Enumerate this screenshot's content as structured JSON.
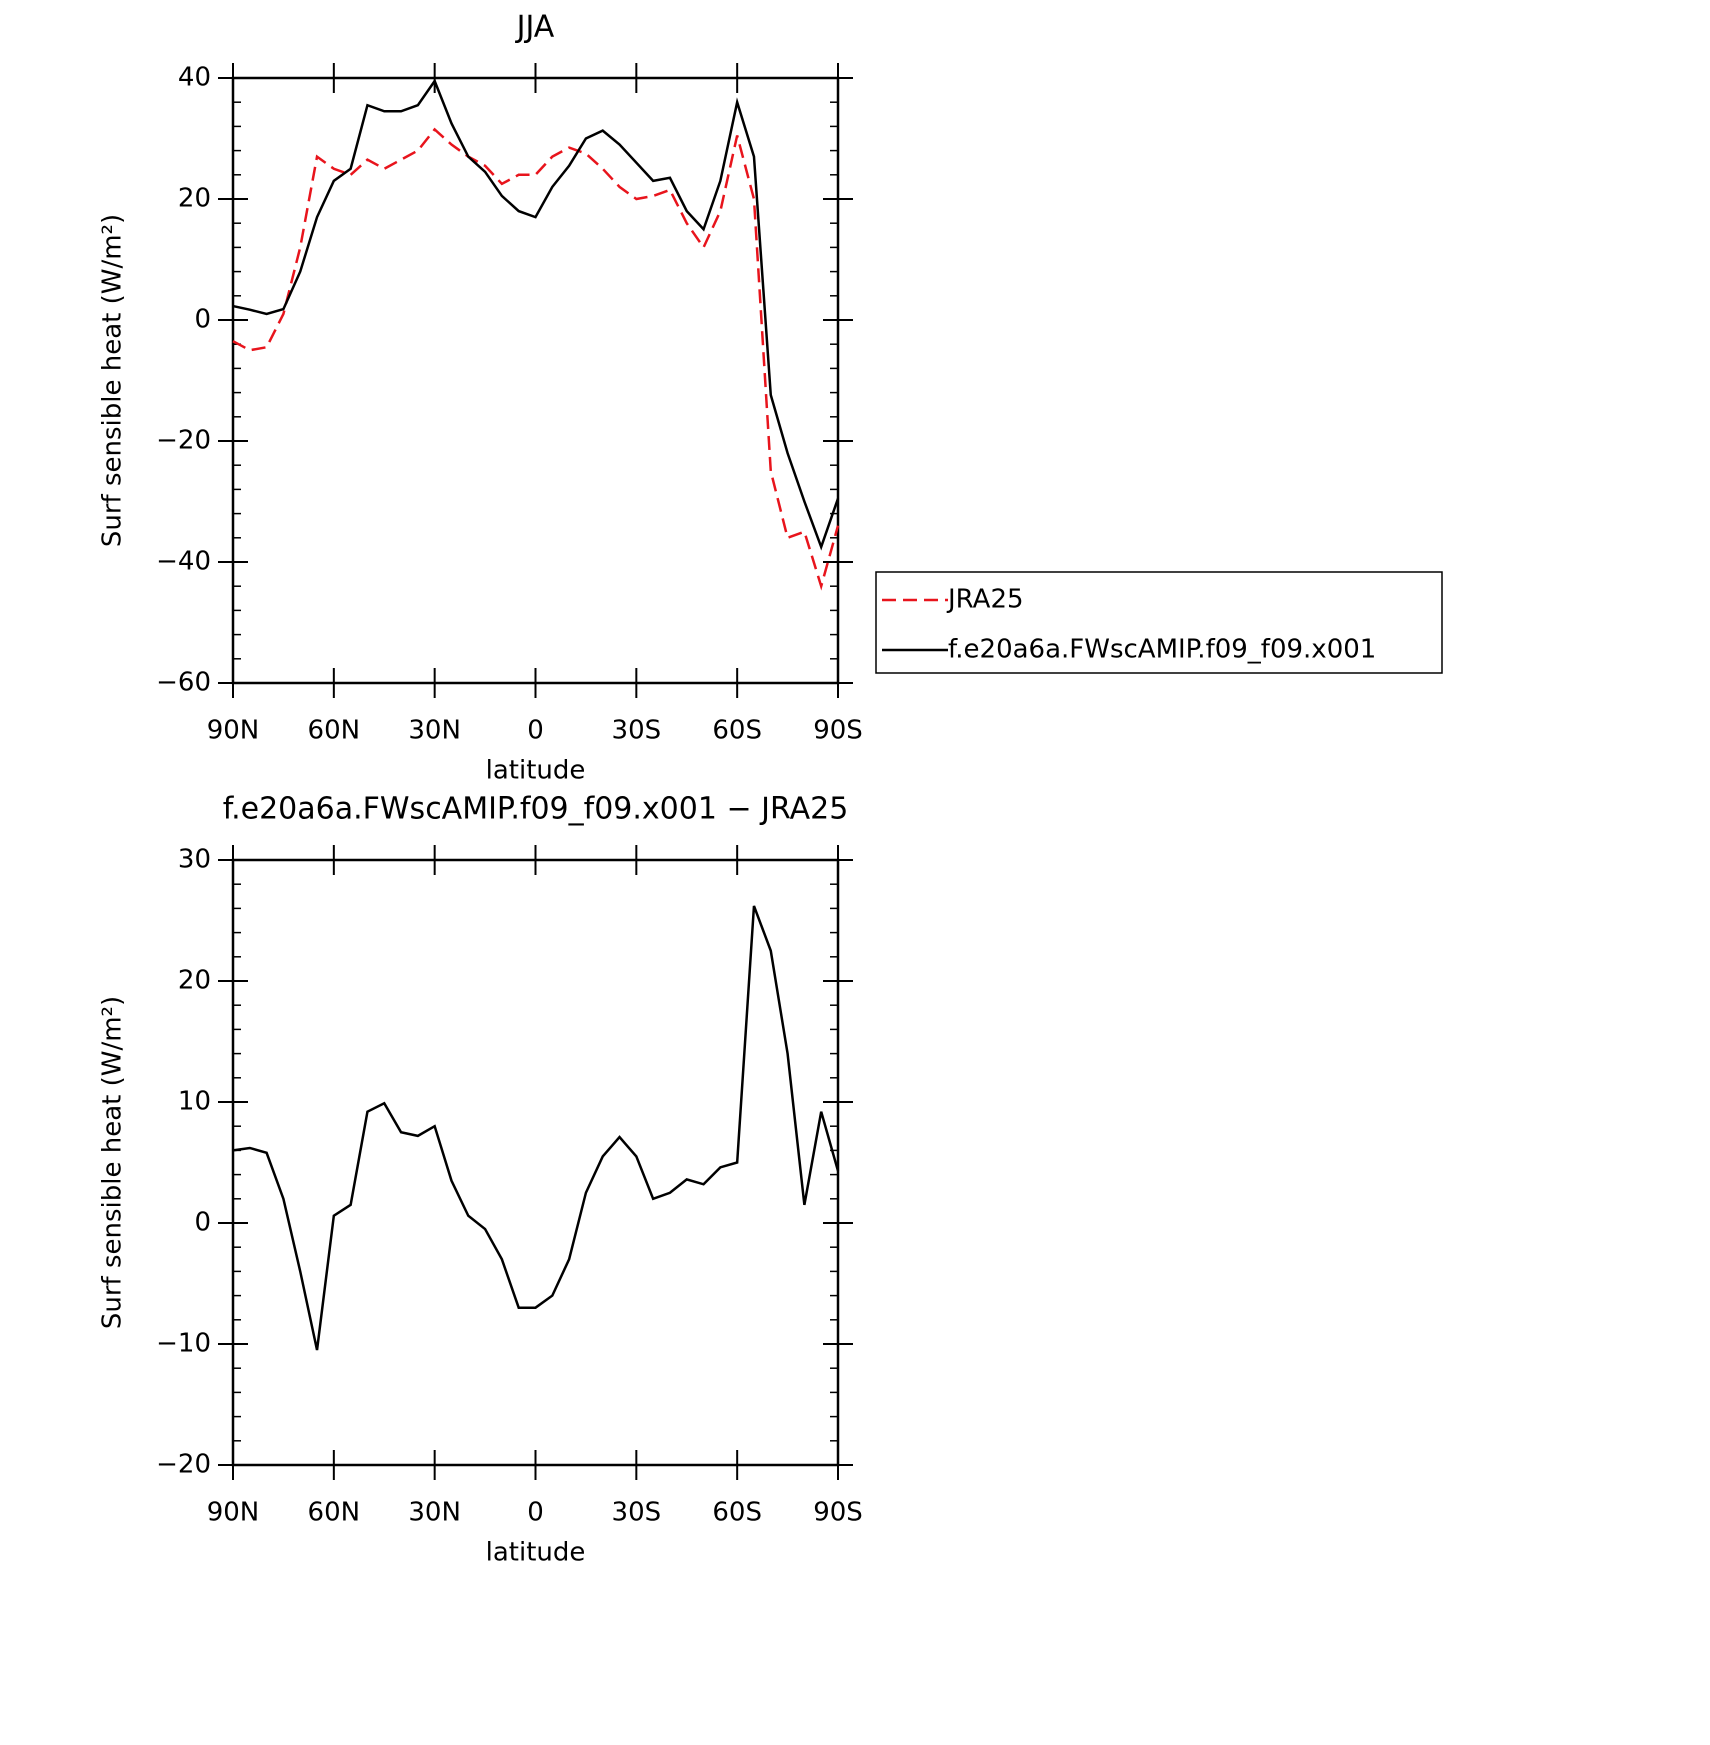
{
  "chart_data": [
    {
      "type": "line",
      "title": "JJA",
      "xlabel": "latitude",
      "ylabel": "Surf sensible heat (W/m²)",
      "x": [
        90,
        85,
        80,
        75,
        70,
        65,
        60,
        55,
        50,
        45,
        40,
        35,
        30,
        25,
        20,
        15,
        10,
        5,
        0,
        -5,
        -10,
        -15,
        -20,
        -25,
        -30,
        -35,
        -40,
        -45,
        -50,
        -55,
        -60,
        -65,
        -70,
        -75,
        -80,
        -85,
        -90
      ],
      "series": [
        {
          "name": "JRA25",
          "color": "#e8141c",
          "dash": true,
          "values": [
            -3.5,
            -5,
            -4.5,
            1,
            12,
            27,
            25,
            24,
            26.5,
            25,
            26.5,
            28,
            31.5,
            29,
            27,
            25.5,
            22.5,
            24,
            24,
            27,
            28.5,
            27.5,
            25,
            22,
            20,
            20.5,
            21.5,
            16,
            12,
            18,
            30.5,
            20,
            -25,
            -36,
            -35,
            -44,
            -34
          ]
        },
        {
          "name": "f.e20a6a.FWscAMIP.f09_f09.x001",
          "color": "#000000",
          "dash": false,
          "values": [
            2.3,
            1.7,
            1,
            1.8,
            8,
            17,
            23,
            25,
            35.5,
            34.5,
            34.5,
            35.5,
            39.5,
            32.5,
            27,
            24.5,
            20.5,
            18,
            17,
            22,
            25.5,
            30,
            31.3,
            29,
            26,
            23,
            23.5,
            18,
            15,
            23,
            36,
            27,
            -12.4,
            -22,
            -30,
            -37.5,
            -29.5
          ]
        }
      ],
      "xlim": [
        90,
        -90
      ],
      "xticks": [
        {
          "value": 90,
          "label": "90N"
        },
        {
          "value": 60,
          "label": "60N"
        },
        {
          "value": 30,
          "label": "30N"
        },
        0,
        {
          "value": -30,
          "label": "30S"
        },
        {
          "value": -60,
          "label": "60S"
        },
        {
          "value": -90,
          "label": "90S"
        }
      ],
      "ylim": [
        -60,
        40
      ],
      "yticks": [
        {
          "value": -60,
          "label": "−60"
        },
        {
          "value": -40,
          "label": "−40"
        },
        {
          "value": -20,
          "label": "−20"
        },
        0,
        20,
        40
      ],
      "legend": "right"
    },
    {
      "type": "line",
      "title": "f.e20a6a.FWscAMIP.f09_f09.x001 − JRA25",
      "xlabel": "latitude",
      "ylabel": "Surf sensible heat (W/m²)",
      "x": [
        90,
        85,
        80,
        75,
        70,
        65,
        60,
        55,
        50,
        45,
        40,
        35,
        30,
        25,
        20,
        15,
        10,
        5,
        0,
        -5,
        -10,
        -15,
        -20,
        -25,
        -30,
        -35,
        -40,
        -45,
        -50,
        -55,
        -60,
        -65,
        -70,
        -75,
        -80,
        -85,
        -90
      ],
      "series": [
        {
          "color": "#000000",
          "dash": false,
          "values": [
            6,
            6.2,
            5.8,
            2,
            -4,
            -10.5,
            0.6,
            1.5,
            9.2,
            9.9,
            7.5,
            7.2,
            8,
            3.5,
            0.6,
            -0.5,
            -3,
            -7,
            -7,
            -6,
            -3,
            2.5,
            5.5,
            7.1,
            5.5,
            2,
            2.5,
            3.6,
            3.2,
            4.6,
            5,
            26.2,
            22.5,
            14,
            1.5,
            9.2,
            4.3
          ]
        }
      ],
      "xlim": [
        90,
        -90
      ],
      "xticks": [
        {
          "value": 90,
          "label": "90N"
        },
        {
          "value": 60,
          "label": "60N"
        },
        {
          "value": 30,
          "label": "30N"
        },
        0,
        {
          "value": -30,
          "label": "30S"
        },
        {
          "value": -60,
          "label": "60S"
        },
        {
          "value": -90,
          "label": "90S"
        }
      ],
      "ylim": [
        -20,
        30
      ],
      "yticks": [
        {
          "value": -20,
          "label": "−20"
        },
        {
          "value": -10,
          "label": "−10"
        },
        0,
        10,
        20,
        30
      ]
    }
  ]
}
